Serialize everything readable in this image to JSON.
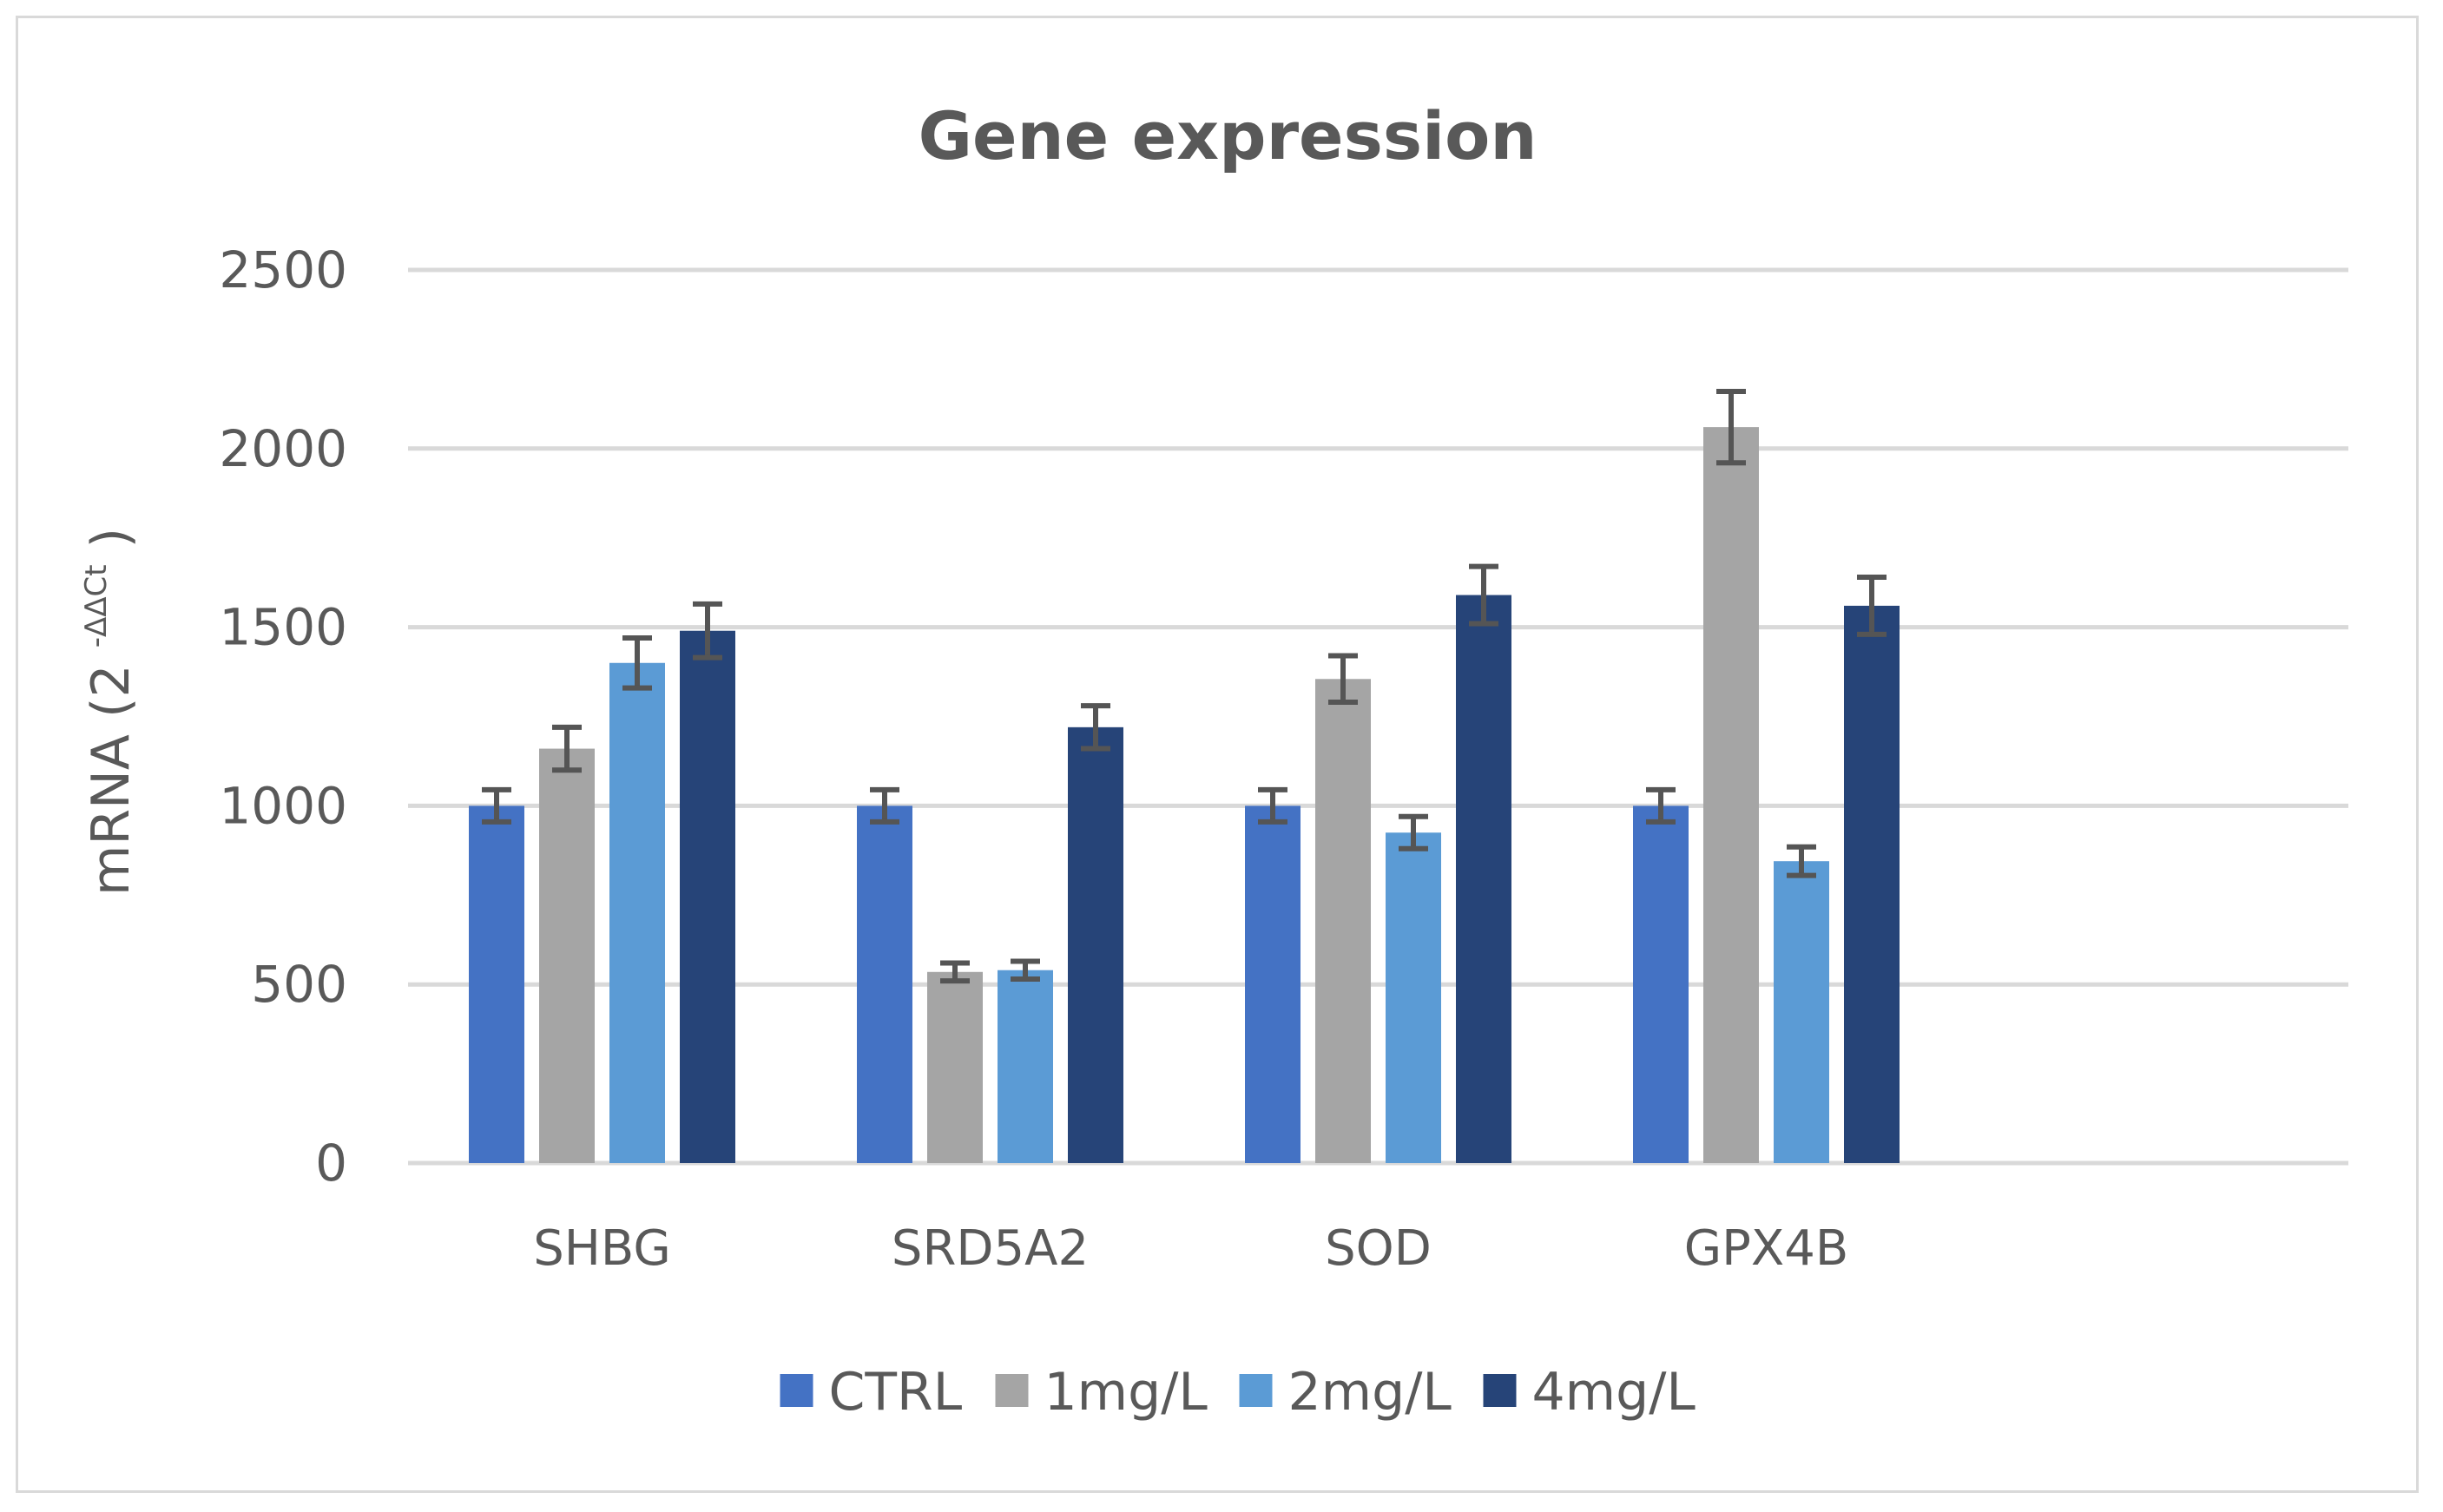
{
  "chart_data": {
    "type": "bar",
    "title": "Gene expression",
    "xlabel": "",
    "ylabel": "mRNA",
    "ylabel_suffix": "(2",
    "ylabel_superscript": "-ΔΔCt",
    "ylabel_close": ")",
    "ylim": [
      0,
      2500
    ],
    "yticks": [
      "0",
      "500",
      "1000",
      "1500",
      "2000",
      "2500"
    ],
    "ytick_values": [
      0,
      500,
      1000,
      1500,
      2000,
      2500
    ],
    "grid": true,
    "legend_position": "bottom",
    "categories": [
      "SHBG",
      "SRD5A2",
      "SOD",
      "GPX4B"
    ],
    "empty_slots_after": 1,
    "series": [
      {
        "name": "CTRL",
        "color": "#4472c4",
        "values": [
          1000,
          1000,
          1000,
          1000
        ],
        "errors": [
          45,
          45,
          45,
          45
        ]
      },
      {
        "name": "1mg/L",
        "color": "#a5a5a5",
        "values": [
          1160,
          535,
          1355,
          2060
        ],
        "errors": [
          60,
          25,
          65,
          100
        ]
      },
      {
        "name": "2mg/L",
        "color": "#5b9bd5",
        "values": [
          1400,
          540,
          925,
          845
        ],
        "errors": [
          70,
          25,
          45,
          40
        ]
      },
      {
        "name": "4mg/L",
        "color": "#264478",
        "values": [
          1490,
          1220,
          1590,
          1560
        ],
        "errors": [
          75,
          60,
          80,
          80
        ]
      }
    ]
  }
}
